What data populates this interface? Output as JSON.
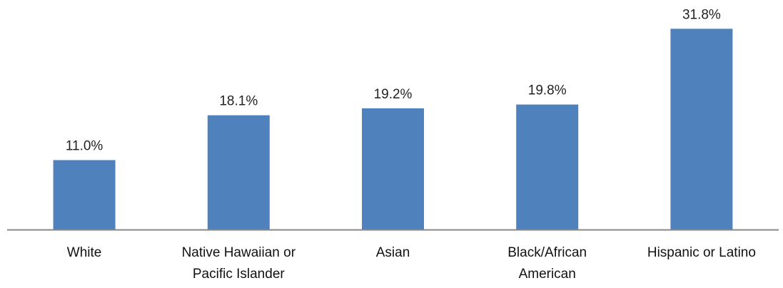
{
  "chart_data": {
    "type": "bar",
    "title": "",
    "xlabel": "",
    "ylabel": "",
    "categories": [
      [
        "White"
      ],
      [
        "Native Hawaiian or",
        "Pacific Islander"
      ],
      [
        "Asian"
      ],
      [
        "Black/African",
        "American"
      ],
      [
        "Hispanic or Latino"
      ]
    ],
    "values": [
      11.0,
      18.1,
      19.2,
      19.8,
      31.8
    ],
    "value_labels": [
      "11.0%",
      "18.1%",
      "19.2%",
      "19.8%",
      "31.8%"
    ],
    "unit": "%",
    "ylim": [
      0,
      35
    ],
    "grid": false,
    "legend": "none",
    "colors": {
      "bar": "#4F81BD",
      "axis": "#888888"
    }
  }
}
